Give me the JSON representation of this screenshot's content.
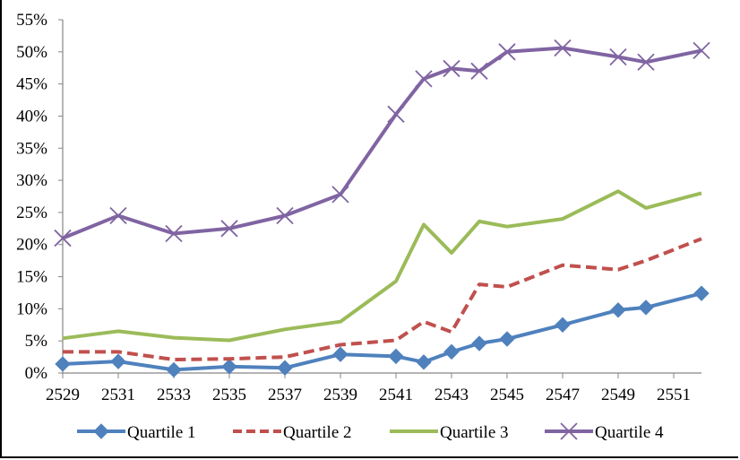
{
  "chart_data": {
    "type": "line",
    "title": "",
    "xlabel": "",
    "ylabel": "",
    "x": [
      2529,
      2531,
      2533,
      2535,
      2537,
      2539,
      2541,
      2542,
      2543,
      2544,
      2545,
      2547,
      2549,
      2550,
      2552
    ],
    "xlim": [
      2529,
      2552
    ],
    "x_ticks": [
      2529,
      2531,
      2533,
      2535,
      2537,
      2539,
      2541,
      2543,
      2545,
      2547,
      2549,
      2551
    ],
    "x_tick_labels": [
      "2529",
      "2531",
      "2533",
      "2535",
      "2537",
      "2539",
      "2541",
      "2543",
      "2545",
      "2547",
      "2549",
      "2551"
    ],
    "ylim": [
      0,
      55
    ],
    "y_ticks": [
      0,
      5,
      10,
      15,
      20,
      25,
      30,
      35,
      40,
      45,
      50,
      55
    ],
    "y_tick_labels": [
      "0%",
      "5%",
      "10%",
      "15%",
      "20%",
      "25%",
      "30%",
      "35%",
      "40%",
      "45%",
      "50%",
      "55%"
    ],
    "grid": false,
    "legend_position": "bottom",
    "series": [
      {
        "name": "Quartile 1",
        "color": "#4F81BD",
        "style": "solid",
        "marker": "diamond",
        "values": [
          1.4,
          1.8,
          0.5,
          1.0,
          0.8,
          2.9,
          2.6,
          1.7,
          3.3,
          4.6,
          5.3,
          7.5,
          9.8,
          10.2,
          12.4
        ]
      },
      {
        "name": "Quartile 2",
        "color": "#C0504D",
        "style": "dashed",
        "marker": "none",
        "values": [
          3.3,
          3.3,
          2.1,
          2.2,
          2.5,
          4.4,
          5.1,
          8.0,
          6.4,
          13.8,
          13.4,
          16.8,
          16.1,
          17.5,
          20.9
        ]
      },
      {
        "name": "Quartile 3",
        "color": "#9BBB59",
        "style": "solid",
        "marker": "none",
        "values": [
          5.4,
          6.5,
          5.5,
          5.1,
          6.8,
          8.0,
          14.3,
          23.1,
          18.7,
          23.6,
          22.8,
          24.0,
          28.3,
          25.7,
          28.0
        ]
      },
      {
        "name": "Quartile 4",
        "color": "#8064A2",
        "style": "solid",
        "marker": "x",
        "values": [
          21.0,
          24.5,
          21.7,
          22.5,
          24.5,
          27.8,
          40.3,
          45.8,
          47.4,
          47.0,
          50.0,
          50.6,
          49.2,
          48.4,
          50.2
        ]
      }
    ]
  }
}
